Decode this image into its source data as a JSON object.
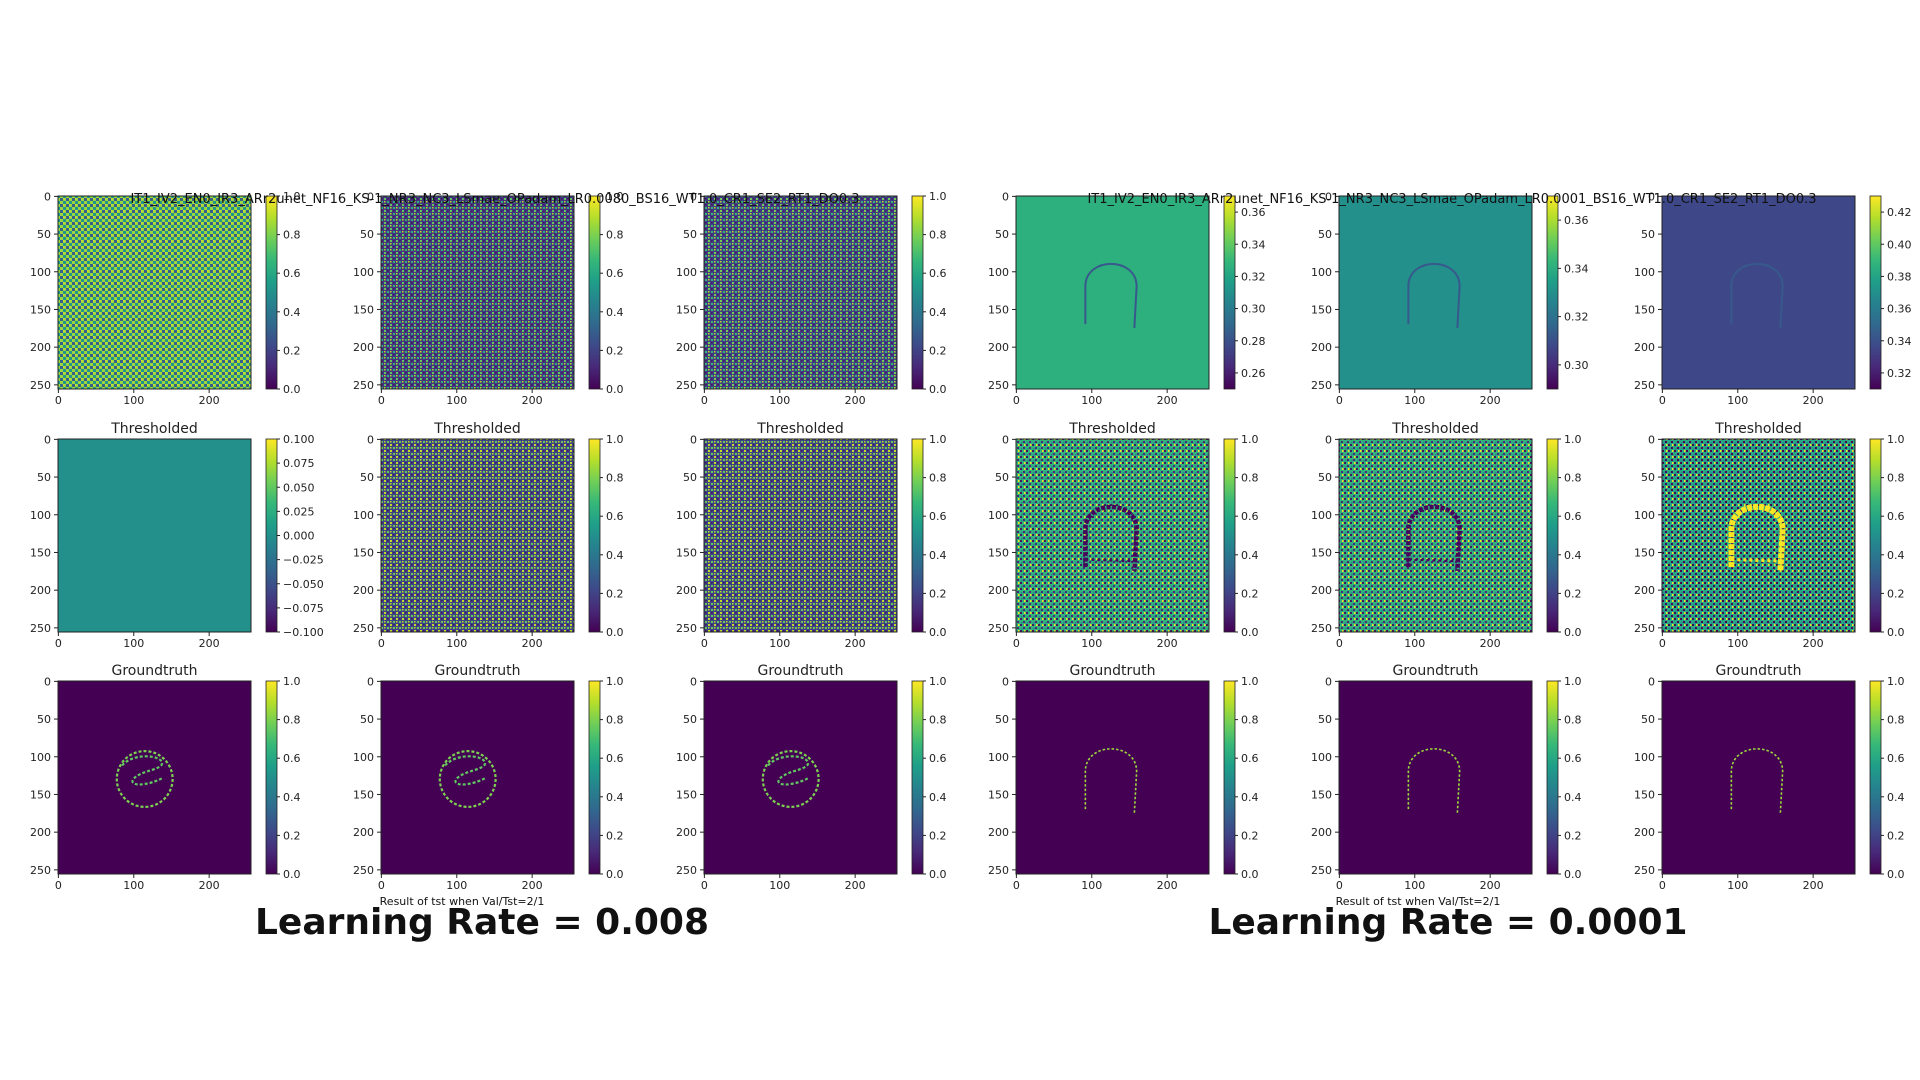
{
  "panels": [
    {
      "suptitle": "IT1_IV2_EN0_IR3_ARr2unet_NF16_KS-1_NR3_NC3_LSmae_OPadam_LR0.0080_BS16_WT1.0_CR1_SE2_RT1_DO0.3",
      "caption": "Result of tst when Val/Tst=2/1",
      "lr_label": "Learning Rate = 0.008"
    },
    {
      "suptitle": "IT1_IV2_EN0_IR3_ARr2unet_NF16_KS-1_NR3_NC3_LSmae_OPadam_LR0.0001_BS16_WT1.0_CR1_SE2_RT1_DO0.3",
      "caption": "Result of tst when Val/Tst=2/1",
      "lr_label": "Learning Rate = 0.0001"
    }
  ],
  "colors": {
    "viridis": [
      "#440154",
      "#482878",
      "#3e4989",
      "#31688e",
      "#26828e",
      "#1f9e89",
      "#35b779",
      "#6ece58",
      "#b5de2b",
      "#fde725"
    ]
  },
  "chart_data": [
    {
      "type": "heatmap",
      "panel": 0,
      "row": 0,
      "col": 0,
      "title": "",
      "xticks": [
        "0",
        "100",
        "200"
      ],
      "yticks": [
        "0",
        "50",
        "100",
        "150",
        "200",
        "250"
      ],
      "colorbar_ticks": [
        "0.0",
        "0.2",
        "0.4",
        "0.6",
        "0.8",
        "1.0"
      ],
      "vmin": 0.0,
      "vmax": 1.0,
      "pattern": "checker_bright",
      "mean_value": 0.85,
      "contrast": 0.55,
      "shape": "none"
    },
    {
      "type": "heatmap",
      "panel": 0,
      "row": 0,
      "col": 1,
      "title": "",
      "xticks": [
        "0",
        "100",
        "200"
      ],
      "yticks": [
        "0",
        "50",
        "100",
        "150",
        "200",
        "250"
      ],
      "colorbar_ticks": [
        "0.0",
        "0.2",
        "0.4",
        "0.6",
        "0.8",
        "1.0"
      ],
      "vmin": 0.0,
      "vmax": 1.0,
      "pattern": "checker_dark",
      "mean_value": 0.15,
      "contrast": 0.6,
      "shape": "none"
    },
    {
      "type": "heatmap",
      "panel": 0,
      "row": 0,
      "col": 2,
      "title": "",
      "xticks": [
        "0",
        "100",
        "200"
      ],
      "yticks": [
        "0",
        "50",
        "100",
        "150",
        "200",
        "250"
      ],
      "colorbar_ticks": [
        "0.0",
        "0.2",
        "0.4",
        "0.6",
        "0.8",
        "1.0"
      ],
      "vmin": 0.0,
      "vmax": 1.0,
      "pattern": "checker_dark",
      "mean_value": 0.18,
      "contrast": 0.6,
      "shape": "none"
    },
    {
      "type": "heatmap",
      "panel": 0,
      "row": 1,
      "col": 0,
      "title": "Thresholded",
      "xticks": [
        "0",
        "100",
        "200"
      ],
      "yticks": [
        "0",
        "50",
        "100",
        "150",
        "200",
        "250"
      ],
      "colorbar_ticks": [
        "−0.100",
        "−0.075",
        "−0.050",
        "−0.025",
        "0.000",
        "0.025",
        "0.050",
        "0.075",
        "0.100"
      ],
      "vmin": -0.1,
      "vmax": 0.1,
      "pattern": "uniform",
      "mean_value": 0.5,
      "contrast": 0,
      "shape": "none"
    },
    {
      "type": "heatmap",
      "panel": 0,
      "row": 1,
      "col": 1,
      "title": "Thresholded",
      "xticks": [
        "0",
        "100",
        "200"
      ],
      "yticks": [
        "0",
        "50",
        "100",
        "150",
        "200",
        "250"
      ],
      "colorbar_ticks": [
        "0.0",
        "0.2",
        "0.4",
        "0.6",
        "0.8",
        "1.0"
      ],
      "vmin": 0.0,
      "vmax": 1.0,
      "pattern": "checker_dark",
      "mean_value": 0.2,
      "contrast": 0.7,
      "shape": "none"
    },
    {
      "type": "heatmap",
      "panel": 0,
      "row": 1,
      "col": 2,
      "title": "Thresholded",
      "xticks": [
        "0",
        "100",
        "200"
      ],
      "yticks": [
        "0",
        "50",
        "100",
        "150",
        "200",
        "250"
      ],
      "colorbar_ticks": [
        "0.0",
        "0.2",
        "0.4",
        "0.6",
        "0.8",
        "1.0"
      ],
      "vmin": 0.0,
      "vmax": 1.0,
      "pattern": "checker_dark",
      "mean_value": 0.2,
      "contrast": 0.7,
      "shape": "none"
    },
    {
      "type": "heatmap",
      "panel": 0,
      "row": 2,
      "col": 0,
      "title": "Groundtruth",
      "xticks": [
        "0",
        "100",
        "200"
      ],
      "yticks": [
        "0",
        "50",
        "100",
        "150",
        "200",
        "250"
      ],
      "colorbar_ticks": [
        "0.0",
        "0.2",
        "0.4",
        "0.6",
        "0.8",
        "1.0"
      ],
      "vmin": 0.0,
      "vmax": 1.0,
      "pattern": "uniform",
      "mean_value": 0.0,
      "contrast": 0,
      "shape": "circle_curve"
    },
    {
      "type": "heatmap",
      "panel": 0,
      "row": 2,
      "col": 1,
      "title": "Groundtruth",
      "xticks": [
        "0",
        "100",
        "200"
      ],
      "yticks": [
        "0",
        "50",
        "100",
        "150",
        "200",
        "250"
      ],
      "colorbar_ticks": [
        "0.0",
        "0.2",
        "0.4",
        "0.6",
        "0.8",
        "1.0"
      ],
      "vmin": 0.0,
      "vmax": 1.0,
      "pattern": "uniform",
      "mean_value": 0.0,
      "contrast": 0,
      "shape": "circle_curve"
    },
    {
      "type": "heatmap",
      "panel": 0,
      "row": 2,
      "col": 2,
      "title": "Groundtruth",
      "xticks": [
        "0",
        "100",
        "200"
      ],
      "yticks": [
        "0",
        "50",
        "100",
        "150",
        "200",
        "250"
      ],
      "colorbar_ticks": [
        "0.0",
        "0.2",
        "0.4",
        "0.6",
        "0.8",
        "1.0"
      ],
      "vmin": 0.0,
      "vmax": 1.0,
      "pattern": "uniform",
      "mean_value": 0.0,
      "contrast": 0,
      "shape": "circle_curve"
    },
    {
      "type": "heatmap",
      "panel": 1,
      "row": 0,
      "col": 0,
      "title": "",
      "xticks": [
        "0",
        "100",
        "200"
      ],
      "yticks": [
        "0",
        "50",
        "100",
        "150",
        "200",
        "250"
      ],
      "colorbar_ticks": [
        "0.26",
        "0.28",
        "0.30",
        "0.32",
        "0.34",
        "0.36"
      ],
      "vmin": 0.25,
      "vmax": 0.37,
      "pattern": "uniform",
      "mean_value": 0.63,
      "contrast": 0,
      "shape": "arch_faint"
    },
    {
      "type": "heatmap",
      "panel": 1,
      "row": 0,
      "col": 1,
      "title": "",
      "xticks": [
        "0",
        "100",
        "200"
      ],
      "yticks": [
        "0",
        "50",
        "100",
        "150",
        "200",
        "250"
      ],
      "colorbar_ticks": [
        "0.30",
        "0.32",
        "0.34",
        "0.36"
      ],
      "vmin": 0.29,
      "vmax": 0.37,
      "pattern": "uniform",
      "mean_value": 0.5,
      "contrast": 0,
      "shape": "arch_faint"
    },
    {
      "type": "heatmap",
      "panel": 1,
      "row": 0,
      "col": 2,
      "title": "",
      "xticks": [
        "0",
        "100",
        "200"
      ],
      "yticks": [
        "0",
        "50",
        "100",
        "150",
        "200",
        "250"
      ],
      "colorbar_ticks": [
        "0.32",
        "0.34",
        "0.36",
        "0.38",
        "0.40",
        "0.42"
      ],
      "vmin": 0.31,
      "vmax": 0.43,
      "pattern": "uniform",
      "mean_value": 0.22,
      "contrast": 0,
      "shape": "arch_faint"
    },
    {
      "type": "heatmap",
      "panel": 1,
      "row": 1,
      "col": 0,
      "title": "Thresholded",
      "xticks": [
        "0",
        "100",
        "200"
      ],
      "yticks": [
        "0",
        "50",
        "100",
        "150",
        "200",
        "250"
      ],
      "colorbar_ticks": [
        "0.0",
        "0.2",
        "0.4",
        "0.6",
        "0.8",
        "1.0"
      ],
      "vmin": 0.0,
      "vmax": 1.0,
      "pattern": "noisy_mixed",
      "mean_value": 0.65,
      "contrast": 0.6,
      "shape": "arch_dark"
    },
    {
      "type": "heatmap",
      "panel": 1,
      "row": 1,
      "col": 1,
      "title": "Thresholded",
      "xticks": [
        "0",
        "100",
        "200"
      ],
      "yticks": [
        "0",
        "50",
        "100",
        "150",
        "200",
        "250"
      ],
      "colorbar_ticks": [
        "0.0",
        "0.2",
        "0.4",
        "0.6",
        "0.8",
        "1.0"
      ],
      "vmin": 0.0,
      "vmax": 1.0,
      "pattern": "noisy_mixed",
      "mean_value": 0.65,
      "contrast": 0.6,
      "shape": "arch_dark"
    },
    {
      "type": "heatmap",
      "panel": 1,
      "row": 1,
      "col": 2,
      "title": "Thresholded",
      "xticks": [
        "0",
        "100",
        "200"
      ],
      "yticks": [
        "0",
        "50",
        "100",
        "150",
        "200",
        "250"
      ],
      "colorbar_ticks": [
        "0.0",
        "0.2",
        "0.4",
        "0.6",
        "0.8",
        "1.0"
      ],
      "vmin": 0.0,
      "vmax": 1.0,
      "pattern": "noisy_mixed",
      "mean_value": 0.6,
      "contrast": 0.65,
      "shape": "arch_bright"
    },
    {
      "type": "heatmap",
      "panel": 1,
      "row": 2,
      "col": 0,
      "title": "Groundtruth",
      "xticks": [
        "0",
        "100",
        "200"
      ],
      "yticks": [
        "0",
        "50",
        "100",
        "150",
        "200",
        "250"
      ],
      "colorbar_ticks": [
        "0.0",
        "0.2",
        "0.4",
        "0.6",
        "0.8",
        "1.0"
      ],
      "vmin": 0.0,
      "vmax": 1.0,
      "pattern": "uniform",
      "mean_value": 0.0,
      "contrast": 0,
      "shape": "arch_thin"
    },
    {
      "type": "heatmap",
      "panel": 1,
      "row": 2,
      "col": 1,
      "title": "Groundtruth",
      "xticks": [
        "0",
        "100",
        "200"
      ],
      "yticks": [
        "0",
        "50",
        "100",
        "150",
        "200",
        "250"
      ],
      "colorbar_ticks": [
        "0.0",
        "0.2",
        "0.4",
        "0.6",
        "0.8",
        "1.0"
      ],
      "vmin": 0.0,
      "vmax": 1.0,
      "pattern": "uniform",
      "mean_value": 0.0,
      "contrast": 0,
      "shape": "arch_thin"
    },
    {
      "type": "heatmap",
      "panel": 1,
      "row": 2,
      "col": 2,
      "title": "Groundtruth",
      "xticks": [
        "0",
        "100",
        "200"
      ],
      "yticks": [
        "0",
        "50",
        "100",
        "150",
        "200",
        "250"
      ],
      "colorbar_ticks": [
        "0.0",
        "0.2",
        "0.4",
        "0.6",
        "0.8",
        "1.0"
      ],
      "vmin": 0.0,
      "vmax": 1.0,
      "pattern": "uniform",
      "mean_value": 0.0,
      "contrast": 0,
      "shape": "arch_thin"
    }
  ]
}
